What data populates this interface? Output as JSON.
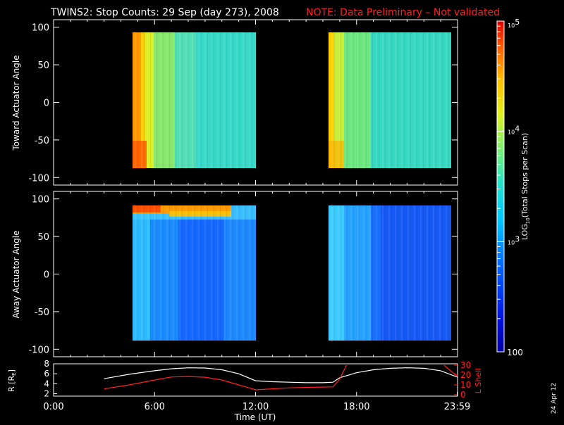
{
  "title": "TWINS2: Stop Counts: 29 Sep (day 273), 2008",
  "note": "NOTE: Data Preliminary – Not validated",
  "date_stamp": "24 Apr 12",
  "colors": {
    "background": "#000000",
    "axis": "#ffffff",
    "note": "#ff2020",
    "rlabel": "#ffffff",
    "lshell": "#ff2020"
  },
  "chart_data": [
    {
      "type": "heatmap",
      "ylabel": "Toward Actuator Angle",
      "ylim": [
        -110,
        110
      ],
      "yticks": [
        "100",
        "50",
        "0",
        "-50",
        "-100"
      ],
      "ytick_values": [
        100,
        50,
        0,
        -50,
        -100
      ],
      "xlim": [
        0,
        24
      ],
      "data_blocks": [
        {
          "x_start": 4.45,
          "x_end": 12.05,
          "y_range": [
            -90,
            90
          ],
          "dominant_log10_counts": 3.6,
          "edge_log10_counts": 4.7
        },
        {
          "x_start": 16.6,
          "x_end": 23.99,
          "y_range": [
            -90,
            90
          ],
          "dominant_log10_counts": 3.5,
          "edge_log10_counts": 4.3
        }
      ]
    },
    {
      "type": "heatmap",
      "ylabel": "Away Actuator Angle",
      "ylim": [
        -110,
        110
      ],
      "yticks": [
        "100",
        "50",
        "0",
        "-50",
        "-100"
      ],
      "ytick_values": [
        100,
        50,
        0,
        -50,
        -100
      ],
      "xlim": [
        0,
        24
      ],
      "data_blocks": [
        {
          "x_start": 4.45,
          "x_end": 12.05,
          "y_range": [
            -90,
            90
          ],
          "dominant_log10_counts": 2.6,
          "edge_log10_counts": 4.6
        },
        {
          "x_start": 16.6,
          "x_end": 23.99,
          "y_range": [
            -90,
            90
          ],
          "dominant_log10_counts": 2.7,
          "edge_log10_counts": 3.0
        }
      ]
    },
    {
      "type": "line",
      "xlabel": "Time (UT)",
      "xticks": [
        "0:00",
        "6:00",
        "12:00",
        "18:00",
        "23:59"
      ],
      "xtick_values": [
        0,
        6,
        12,
        18,
        23.98
      ],
      "ylabel_left": "R [RE]",
      "ylim_left": [
        1.5,
        8
      ],
      "yticks_left": [
        "8",
        "6",
        "4",
        "2"
      ],
      "ytick_values_left": [
        8,
        6,
        4,
        2
      ],
      "ylabel_right": "L Shell",
      "ylim_right": [
        0,
        30
      ],
      "yticks_right": [
        "30",
        "20",
        "10",
        "0"
      ],
      "ytick_values_right": [
        30,
        20,
        10,
        0
      ],
      "series": [
        {
          "name": "R [RE]",
          "axis": "left",
          "color": "#ffffff",
          "x": [
            3,
            4.5,
            6,
            7,
            8,
            9,
            10,
            11,
            12,
            13,
            14,
            15,
            16,
            16.6,
            17,
            18,
            19,
            20,
            21,
            22,
            23,
            24
          ],
          "y": [
            5.0,
            5.9,
            6.6,
            7.0,
            7.2,
            7.15,
            6.8,
            6.0,
            4.6,
            4.4,
            4.3,
            4.2,
            4.2,
            4.3,
            5.2,
            6.2,
            6.8,
            7.1,
            7.2,
            7.1,
            6.6,
            5.3
          ]
        },
        {
          "name": "L Shell",
          "axis": "right",
          "color": "#ff2020",
          "x": [
            3,
            4.5,
            6,
            7,
            8,
            9,
            10,
            11,
            12,
            13,
            14,
            15,
            16,
            16.6,
            17,
            17.4,
            null,
            23.2,
            23.6,
            24
          ],
          "y": [
            6,
            10,
            15,
            18,
            18.5,
            17.8,
            15,
            10,
            5,
            6,
            7,
            7.5,
            7.8,
            8,
            16,
            30,
            null,
            30,
            24,
            19
          ]
        }
      ]
    }
  ],
  "colorbar": {
    "label_base": "LOG",
    "label_sub": "10",
    "label_rest": "(Total Stops per Scan)",
    "min_label": "100",
    "max_label_base": "10",
    "max_label_exp": "5",
    "ticks": [
      {
        "base": "10",
        "exp": "4",
        "value_log10": 4
      },
      {
        "base": "10",
        "exp": "3",
        "value_log10": 3
      }
    ],
    "range_log10": [
      2,
      5
    ]
  }
}
